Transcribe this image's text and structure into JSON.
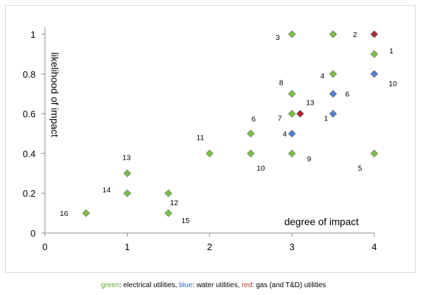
{
  "chart_data": {
    "type": "scatter",
    "xlabel": "degree of impact",
    "ylabel": "likelihood of impact",
    "xlim": [
      0,
      4
    ],
    "ylim": [
      0,
      1
    ],
    "xticks": [
      "0",
      "1",
      "2",
      "3",
      "4"
    ],
    "yticks": [
      "0",
      "0.2",
      "0.4",
      "0.6",
      "0.8",
      "1"
    ],
    "grid": false,
    "series": [
      {
        "group": "electrical",
        "color": "#7ac143",
        "points": [
          {
            "label": "16",
            "x": 0.5,
            "y": 0.1
          },
          {
            "label": "14",
            "x": 1.0,
            "y": 0.2
          },
          {
            "label": "13",
            "x": 1.0,
            "y": 0.3
          },
          {
            "label": "15",
            "x": 1.5,
            "y": 0.1
          },
          {
            "label": "12",
            "x": 1.5,
            "y": 0.2
          },
          {
            "label": "11",
            "x": 2.0,
            "y": 0.4
          },
          {
            "label": "10",
            "x": 2.5,
            "y": 0.4
          },
          {
            "label": "6",
            "x": 2.5,
            "y": 0.5
          },
          {
            "label": "9",
            "x": 3.0,
            "y": 0.4
          },
          {
            "label": "7",
            "x": 3.0,
            "y": 0.6
          },
          {
            "label": "8",
            "x": 3.0,
            "y": 0.7
          },
          {
            "label": "3",
            "x": 3.0,
            "y": 1.0
          },
          {
            "label": "4",
            "x": 3.5,
            "y": 0.8
          },
          {
            "label": "",
            "x": 3.5,
            "y": 1.0
          },
          {
            "label": "5",
            "x": 4.0,
            "y": 0.4
          },
          {
            "label": "1",
            "x": 4.0,
            "y": 0.9
          }
        ]
      },
      {
        "group": "water",
        "color": "#4f81d0",
        "points": [
          {
            "label": "4",
            "x": 3.0,
            "y": 0.5
          },
          {
            "label": "1",
            "x": 3.5,
            "y": 0.6
          },
          {
            "label": "6",
            "x": 3.5,
            "y": 0.7
          },
          {
            "label": "10",
            "x": 4.0,
            "y": 0.8
          }
        ]
      },
      {
        "group": "gas",
        "color": "#b3262e",
        "points": [
          {
            "label": "13",
            "x": 3.1,
            "y": 0.6
          },
          {
            "label": "2",
            "x": 4.0,
            "y": 1.0
          }
        ]
      }
    ]
  },
  "caption": {
    "green_word": "green",
    "green_text": ": electrical utilities, ",
    "blue_word": "blue",
    "blue_text": ": water utilities, ",
    "red_word": "red",
    "red_text": ": gas (and T&D) utilities",
    "green_color": "#5fa82e",
    "blue_color": "#2f6fd0",
    "red_color": "#c0392b"
  }
}
